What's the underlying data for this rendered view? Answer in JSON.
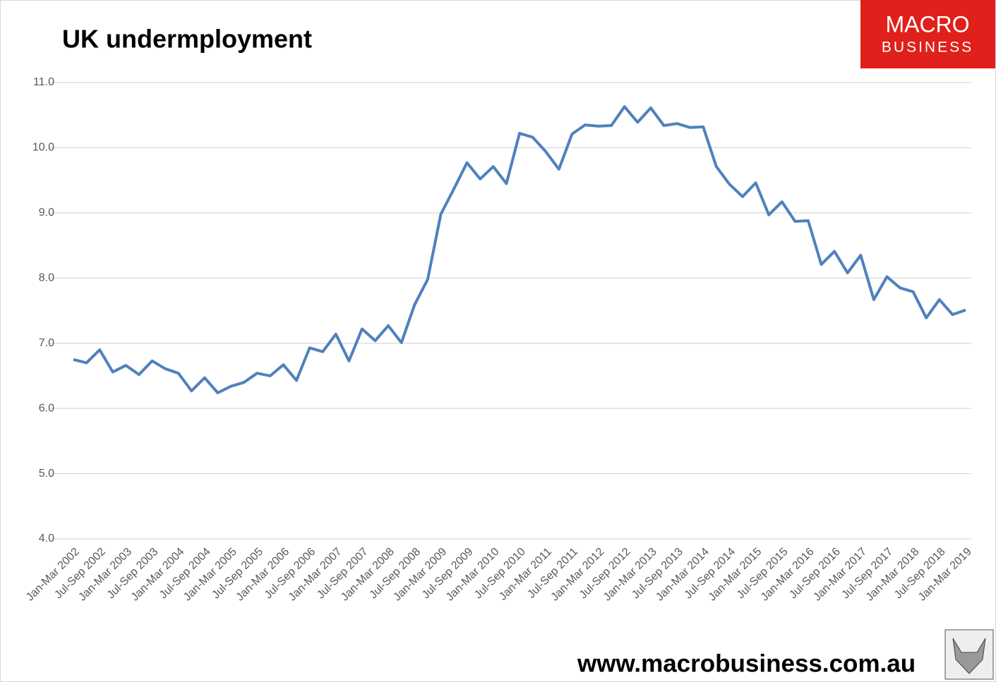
{
  "chart_data": {
    "type": "line",
    "title": "UK undermployment",
    "categories": [
      "Jan-Mar 2002",
      null,
      "Jul-Sep 2002",
      null,
      "Jan-Mar 2003",
      null,
      "Jul-Sep 2003",
      null,
      "Jan-Mar 2004",
      null,
      "Jul-Sep 2004",
      null,
      "Jan-Mar 2005",
      null,
      "Jul-Sep 2005",
      null,
      "Jan-Mar 2006",
      null,
      "Jul-Sep 2006",
      null,
      "Jan-Mar 2007",
      null,
      "Jul-Sep 2007",
      null,
      "Jan-Mar 2008",
      null,
      "Jul-Sep 2008",
      null,
      "Jan-Mar 2009",
      null,
      "Jul-Sep 2009",
      null,
      "Jan-Mar 2010",
      null,
      "Jul-Sep 2010",
      null,
      "Jan-Mar 2011",
      null,
      "Jul-Sep 2011",
      null,
      "Jan-Mar 2012",
      null,
      "Jul-Sep 2012",
      null,
      "Jan-Mar 2013",
      null,
      "Jul-Sep 2013",
      null,
      "Jan-Mar 2014",
      null,
      "Jul-Sep 2014",
      null,
      "Jan-Mar 2015",
      null,
      "Jul-Sep 2015",
      null,
      "Jan-Mar 2016",
      null,
      "Jul-Sep 2016",
      null,
      "Jan-Mar 2017",
      null,
      "Jul-Sep 2017",
      null,
      "Jan-Mar 2018",
      null,
      "Jul-Sep 2018",
      null,
      "Jan-Mar 2019"
    ],
    "series": [
      {
        "color": "#4f81bd",
        "values": [
          6.75,
          6.7,
          6.9,
          6.56,
          6.66,
          6.52,
          6.73,
          6.61,
          6.54,
          6.27,
          6.47,
          6.24,
          6.34,
          6.4,
          6.54,
          6.5,
          6.67,
          6.43,
          6.93,
          6.87,
          7.14,
          6.73,
          7.22,
          7.04,
          7.27,
          7.01,
          7.59,
          7.98,
          8.98,
          9.37,
          9.77,
          9.52,
          9.71,
          9.45,
          10.22,
          10.16,
          9.94,
          9.67,
          10.21,
          10.35,
          10.33,
          10.34,
          10.63,
          10.39,
          10.61,
          10.34,
          10.37,
          10.31,
          10.32,
          9.71,
          9.44,
          9.25,
          9.46,
          8.97,
          9.17,
          8.87,
          8.88,
          8.21,
          8.41,
          8.08,
          8.35,
          7.67,
          8.02,
          7.85,
          7.79,
          7.39,
          7.67,
          7.44,
          7.51
        ]
      }
    ],
    "ylim": [
      4,
      11
    ],
    "yticks": [
      {
        "value": 4,
        "label": "4.0"
      },
      {
        "value": 5,
        "label": "5.0"
      },
      {
        "value": 6,
        "label": "6.0"
      },
      {
        "value": 7,
        "label": "7.0"
      },
      {
        "value": 8,
        "label": "8.0"
      },
      {
        "value": 9,
        "label": "9.0"
      },
      {
        "value": 10,
        "label": "10.0"
      },
      {
        "value": 11,
        "label": "11.0"
      }
    ],
    "grid": true
  },
  "logo": {
    "line1": "MACRO",
    "line2": "BUSINESS"
  },
  "footer": "www.macrobusiness.com.au"
}
